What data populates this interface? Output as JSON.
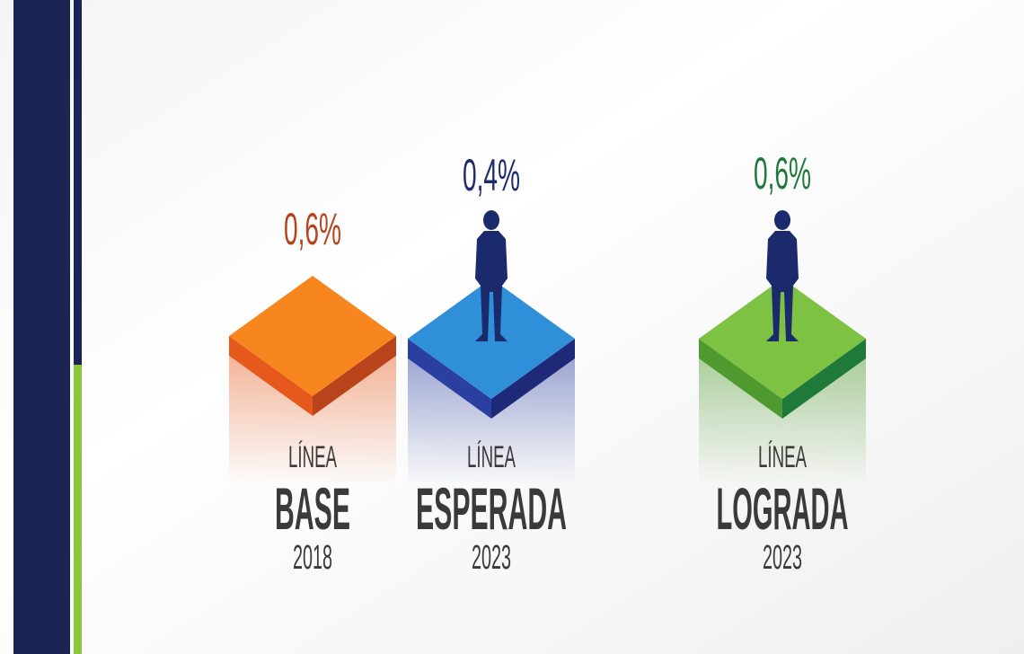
{
  "items": [
    {
      "value": "0,6%",
      "line1": "LÍNEA",
      "line2": "BASE",
      "year": "2018"
    },
    {
      "value": "0,4%",
      "line1": "LÍNEA",
      "line2": "ESPERADA",
      "year": "2023"
    },
    {
      "value": "0,6%",
      "line1": "LÍNEA",
      "line2": "LOGRADA",
      "year": "2023"
    }
  ]
}
